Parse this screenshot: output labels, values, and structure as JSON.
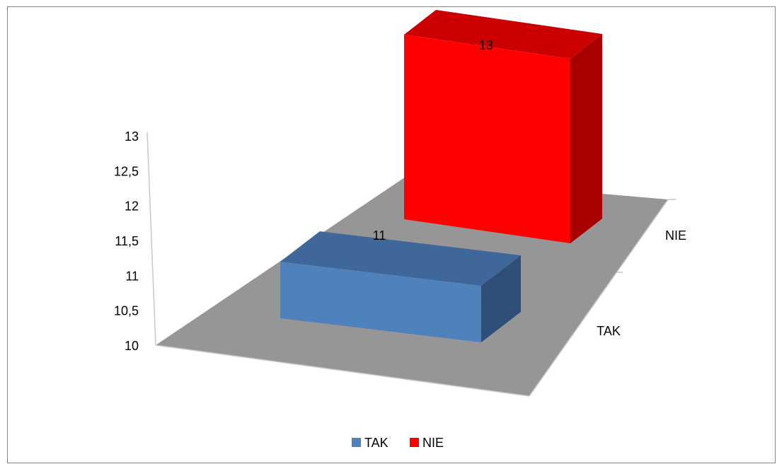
{
  "chart_data": {
    "type": "bar",
    "subtype": "3d-column",
    "title": "",
    "categories": [
      "TAK",
      "NIE"
    ],
    "values": [
      11,
      13
    ],
    "data_labels": [
      "11",
      "13"
    ],
    "y_ticks": [
      "13",
      "12,5",
      "12",
      "11,5",
      "11",
      "10,5",
      "10"
    ],
    "ylim": [
      10,
      13
    ],
    "depth_axis_labels": [
      "NIE",
      "TAK"
    ],
    "grid": false,
    "legend": {
      "placement": "bottom",
      "items": [
        {
          "label": "TAK",
          "color": "#4f81bd"
        },
        {
          "label": "NIE",
          "color": "#ff0000"
        }
      ]
    },
    "colors": {
      "TAK": {
        "front": "#4f81bd",
        "top": "#3f6799",
        "side": "#2f4f79"
      },
      "NIE": {
        "front": "#ff0000",
        "top": "#cc0000",
        "side": "#a80000"
      },
      "floor": "#969696"
    }
  }
}
